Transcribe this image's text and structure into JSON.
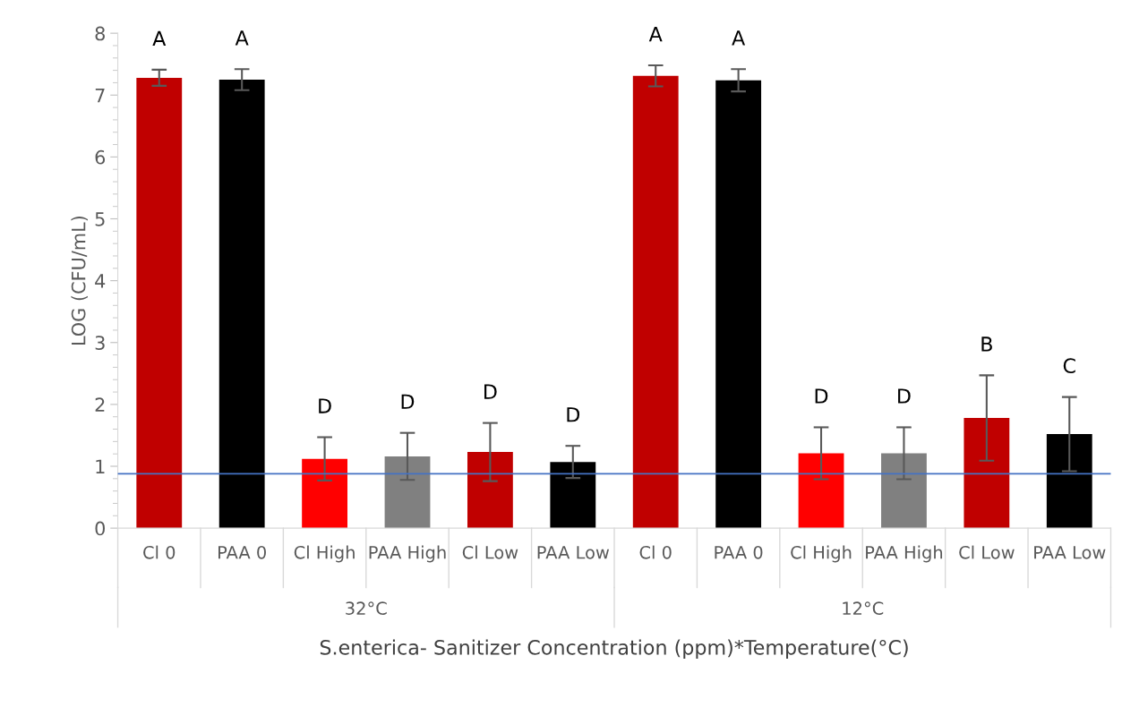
{
  "chart_data": {
    "type": "bar",
    "xlabel": "S.enterica- Sanitizer Concentration (ppm)*Temperature(°C)",
    "ylabel": "LOG (CFU/mL)",
    "categories": [
      "Cl 0",
      "PAA 0",
      "Cl High",
      "PAA High",
      "Cl Low",
      "PAA Low",
      "Cl 0",
      "PAA 0",
      "Cl High",
      "PAA High",
      "Cl Low",
      "PAA Low"
    ],
    "values": [
      7.28,
      7.25,
      1.12,
      1.16,
      1.23,
      1.07,
      7.31,
      7.24,
      1.21,
      1.21,
      1.78,
      1.52
    ],
    "errors": [
      0.13,
      0.17,
      0.35,
      0.38,
      0.47,
      0.26,
      0.17,
      0.18,
      0.42,
      0.42,
      0.69,
      0.6
    ],
    "colors": [
      "#c00000",
      "#000000",
      "#ff0000",
      "#808080",
      "#c00000",
      "#000000",
      "#c00000",
      "#000000",
      "#ff0000",
      "#808080",
      "#c00000",
      "#000000"
    ],
    "annotations": [
      "A",
      "A",
      "D",
      "D",
      "D",
      "D",
      "A",
      "A",
      "D",
      "D",
      "B",
      "C",
      "32°C",
      "12°C"
    ],
    "ref_lines": [
      {
        "axis": "y",
        "value": 0.88,
        "color": "#4472c4"
      }
    ],
    "ylim": [
      0,
      8
    ],
    "yticks": [
      0,
      1,
      2,
      3,
      4,
      5,
      6,
      7,
      8
    ],
    "grid": false
  }
}
